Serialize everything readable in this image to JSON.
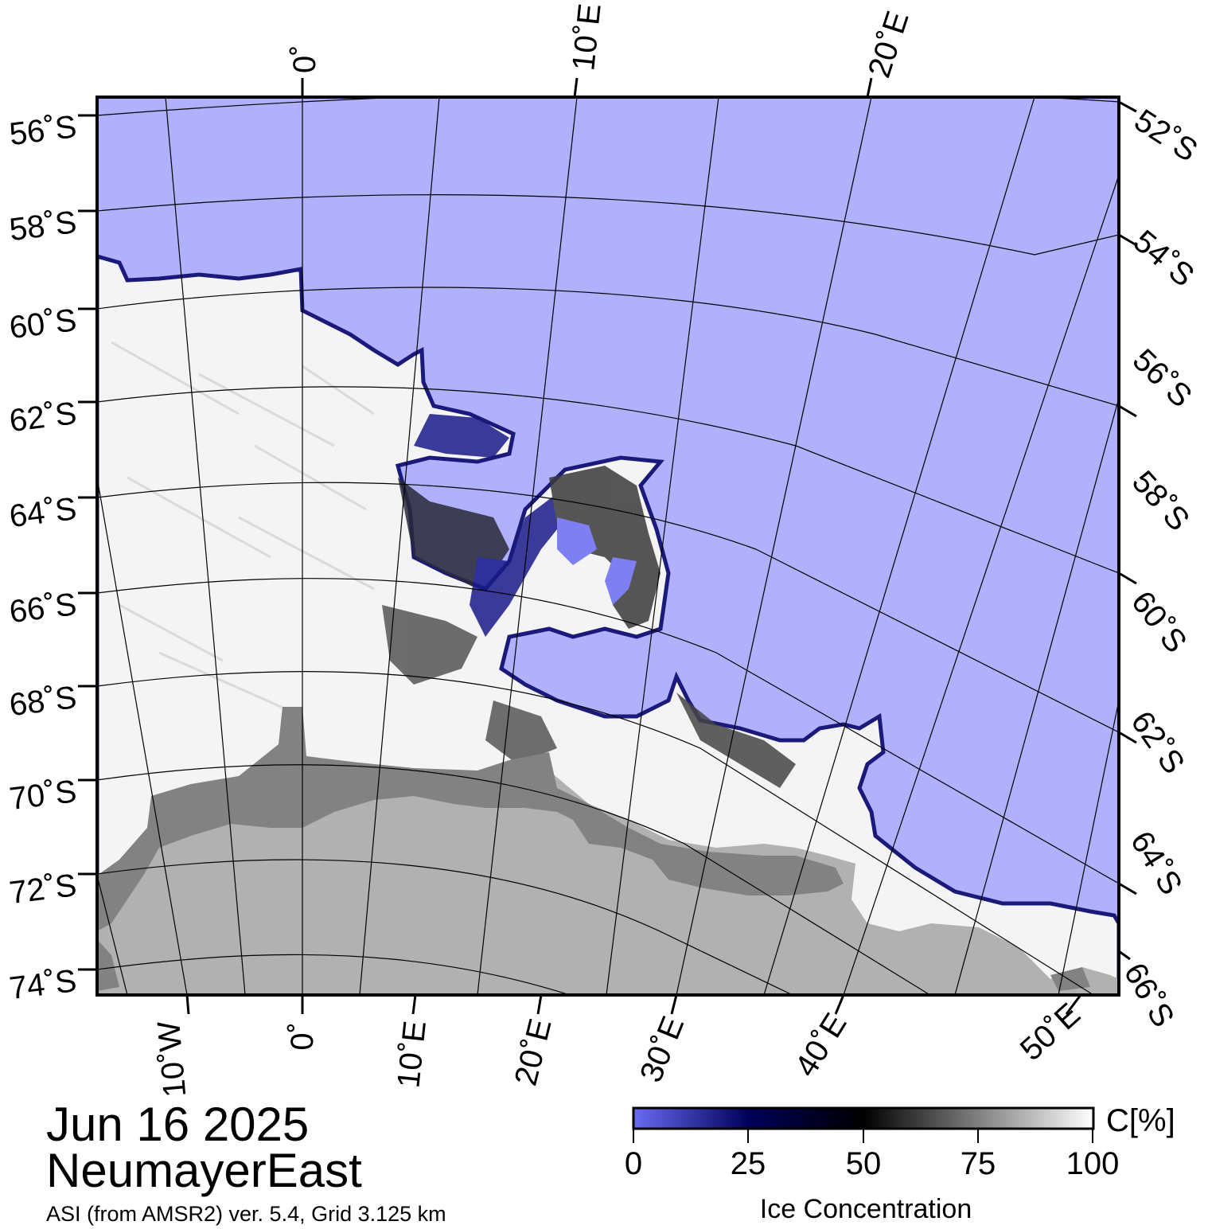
{
  "map": {
    "colors": {
      "open_water": "#b0b0fc",
      "ice": "#f4f4f4",
      "land": "#b1b1b1",
      "ice_shelf": "#828282",
      "edge": "#1a1a7a"
    },
    "left_lat_labels": [
      "56˚S",
      "58˚S",
      "60˚S",
      "62˚S",
      "64˚S",
      "66˚S",
      "68˚S",
      "70˚S",
      "72˚S",
      "74˚S"
    ],
    "right_lat_labels": [
      "52˚S",
      "54˚S",
      "56˚S",
      "58˚S",
      "60˚S",
      "62˚S",
      "64˚S",
      "66˚S"
    ],
    "top_lon_labels": [
      "0˚",
      "10˚E",
      "20˚E"
    ],
    "bottom_lon_labels": [
      "10˚W",
      "0˚",
      "10˚E",
      "20˚E",
      "30˚E",
      "40˚E",
      "50˚E"
    ]
  },
  "info": {
    "date": "Jun 16 2025",
    "region": "NeumayerEast",
    "source": "ASI (from AMSR2) ver. 5.4,  Grid 3.125 km"
  },
  "colorbar": {
    "unit": "C[%]",
    "ticks": [
      "0",
      "25",
      "50",
      "75",
      "100"
    ],
    "label": "Ice Concentration",
    "colors": [
      "#6b6bf5",
      "#00005a",
      "#000000",
      "#808080",
      "#ffffff"
    ]
  }
}
